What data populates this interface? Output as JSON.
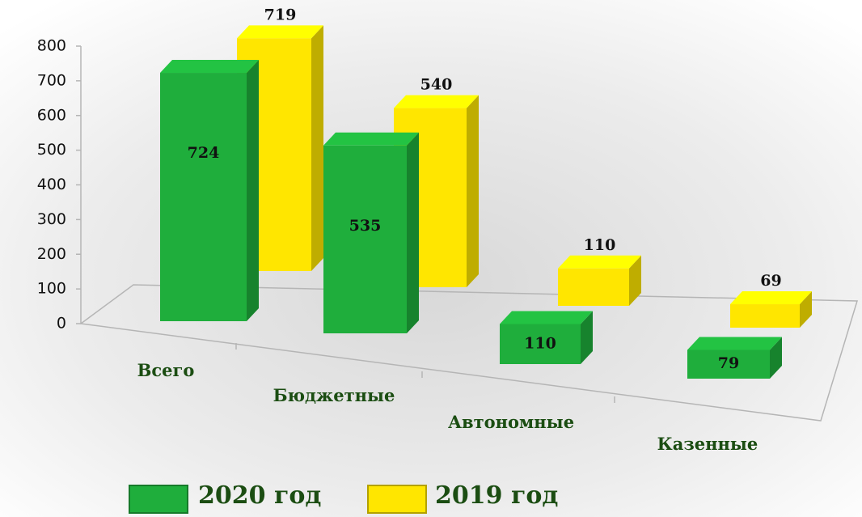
{
  "chart_data": {
    "type": "bar3d",
    "categories": [
      "Всего",
      "Бюджетные",
      "Автономные",
      "Казенные"
    ],
    "series": [
      {
        "name": "2020 год",
        "color": "#1fae3c",
        "values": [
          724,
          535,
          110,
          79
        ]
      },
      {
        "name": "2019 год",
        "color": "#ffe600",
        "values": [
          719,
          540,
          110,
          69
        ]
      }
    ],
    "ylim": [
      0,
      800
    ],
    "yticks": [
      0,
      100,
      200,
      300,
      400,
      500,
      600,
      700,
      800
    ],
    "legend": "bottom"
  }
}
